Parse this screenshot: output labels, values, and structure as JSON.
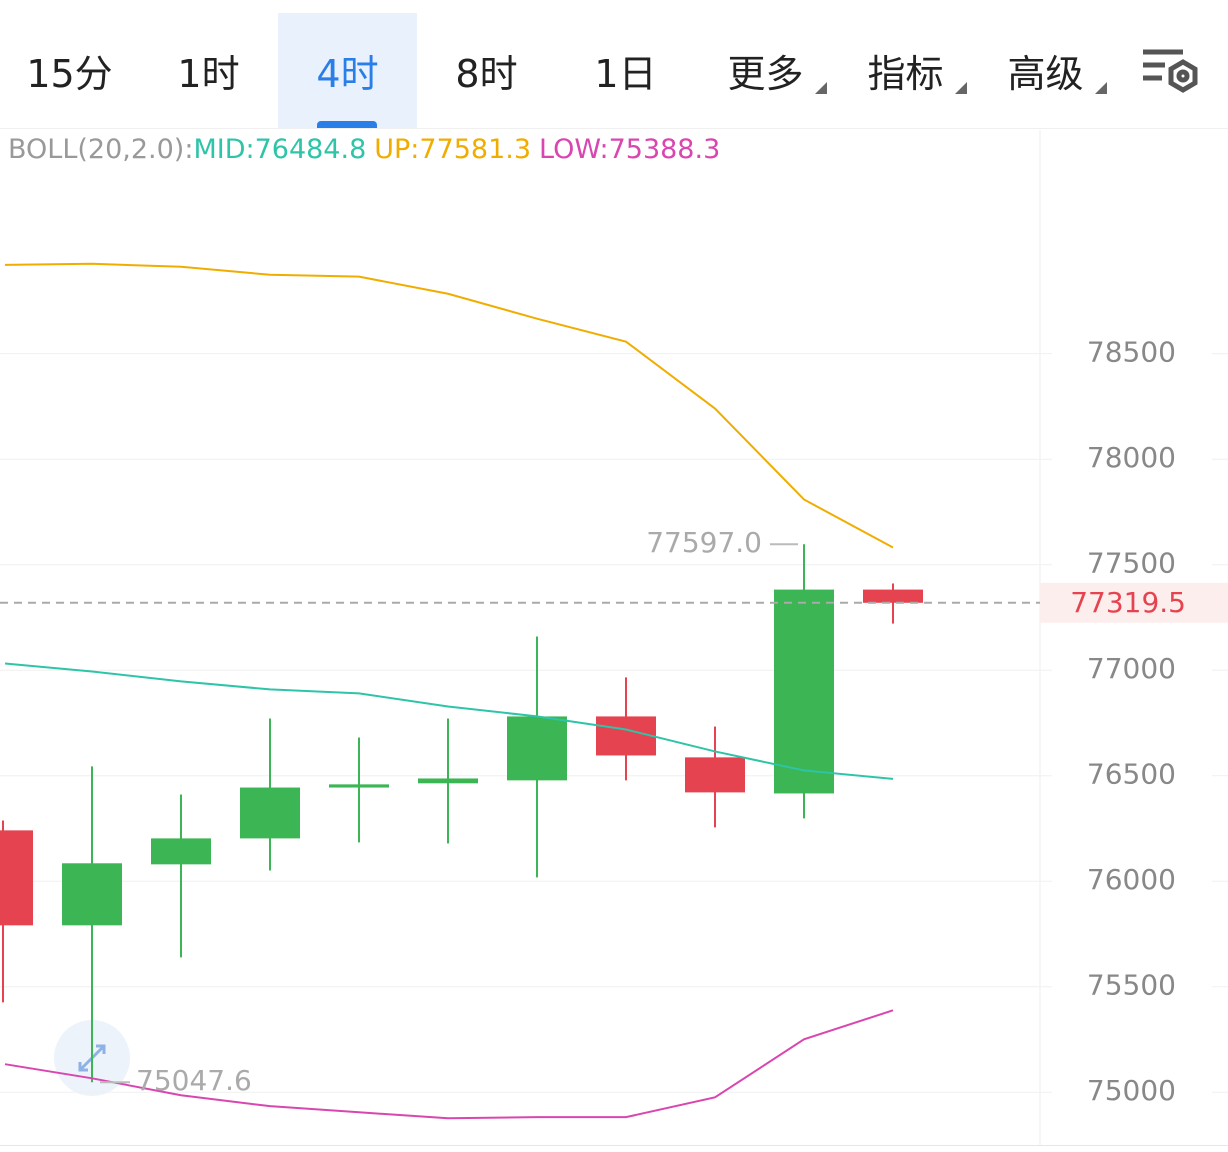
{
  "toolbar": {
    "tabs": [
      {
        "label": "15分",
        "dropdown": false
      },
      {
        "label": "1时",
        "dropdown": false
      },
      {
        "label": "4时",
        "dropdown": false
      },
      {
        "label": "8时",
        "dropdown": false
      },
      {
        "label": "1日",
        "dropdown": false
      },
      {
        "label": "更多",
        "dropdown": true
      },
      {
        "label": "指标",
        "dropdown": true
      },
      {
        "label": "高级",
        "dropdown": true
      }
    ],
    "active_tab": 2
  },
  "chart_data": {
    "type": "candlestick",
    "categories": [
      null,
      null,
      null,
      null,
      null,
      null,
      null,
      null,
      null,
      null,
      null
    ],
    "open": [
      76241,
      75791,
      76080,
      76203,
      76444,
      76464,
      76478,
      76781,
      76587,
      76416,
      77382
    ],
    "close": [
      75791,
      76085,
      76203,
      76444,
      76459,
      76487,
      76781,
      76596,
      76421,
      77382,
      77319.5
    ],
    "high": [
      76288,
      76544,
      76411,
      76771,
      76681,
      76771,
      77160,
      76966,
      76733,
      77597,
      77411
    ],
    "low": [
      75426,
      75047.6,
      75639,
      76051,
      76184,
      76179,
      76018,
      76478,
      76255,
      76298,
      77221
    ],
    "up_color": "#3cb554",
    "down_color": "#e5434f",
    "indicator": "BOLL(20,2.0):",
    "series": [
      {
        "name": "MID:",
        "color": "#2ec4a8",
        "values": [
          77032,
          76994,
          76947,
          76909,
          76890,
          76828,
          76781,
          76719,
          76615,
          76525,
          76484.8
        ]
      },
      {
        "name": "UP:",
        "color": "#f0ad00",
        "values": [
          78921,
          78926,
          78912,
          78874,
          78865,
          78784,
          78666,
          78557,
          78240,
          77809,
          77581.3
        ]
      },
      {
        "name": "LOW:",
        "color": "#d946b0",
        "values": [
          75133,
          75066,
          74986,
          74934,
          74905,
          74877,
          74882,
          74882,
          74976,
          75251,
          75388.3
        ]
      }
    ],
    "ylim": [
      74750,
      79560
    ],
    "yticks": [
      75000,
      75500,
      76000,
      76500,
      77000,
      77500,
      78000,
      78500
    ],
    "grid": true,
    "last_price": 77319.5,
    "annotations": [
      {
        "value": 77597,
        "label": "77597.0",
        "index": 9
      },
      {
        "value": 75047.6,
        "label": "75047.6",
        "index": 1
      }
    ]
  }
}
